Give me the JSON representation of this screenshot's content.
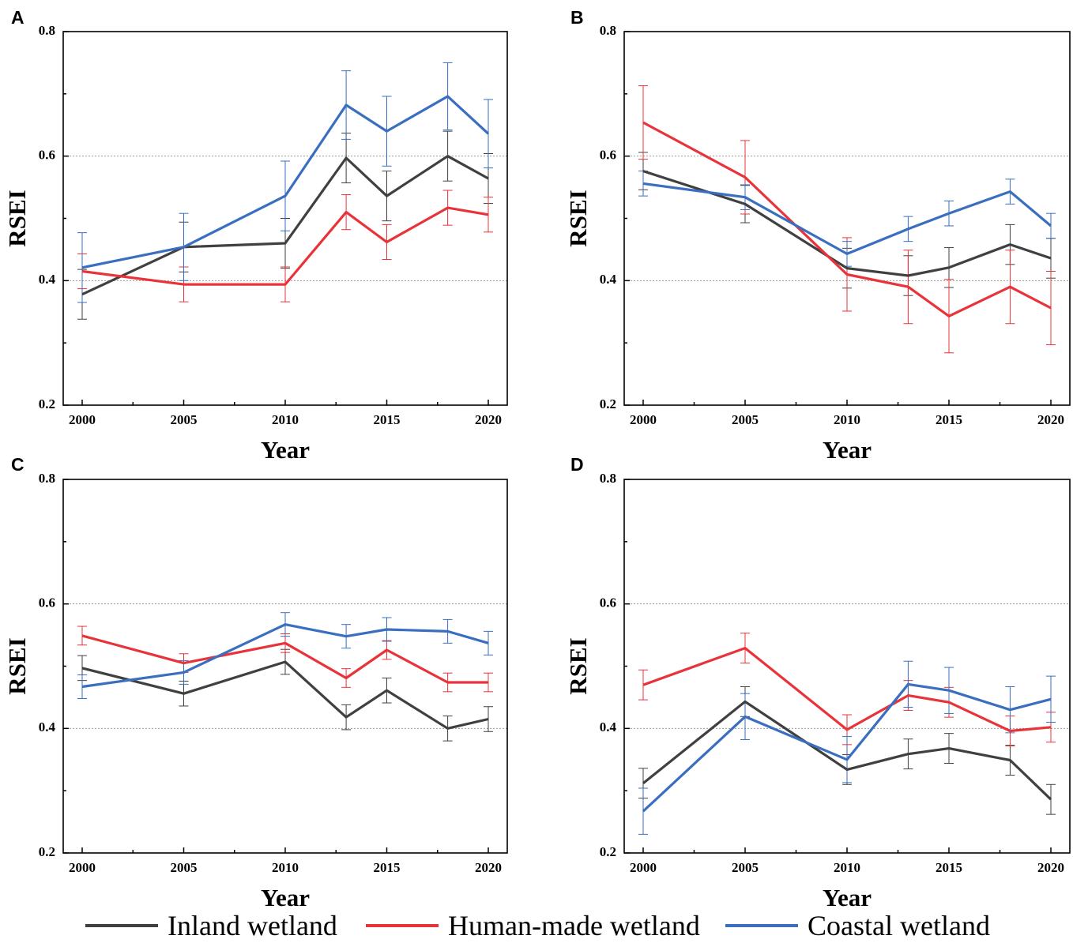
{
  "colors": {
    "inland": "#404040",
    "human": "#e8333a",
    "coastal": "#3a6ebf"
  },
  "legend": [
    {
      "key": "inland",
      "label": "Inland wetland"
    },
    {
      "key": "human",
      "label": "Human-made wetland"
    },
    {
      "key": "coastal",
      "label": "Coastal wetland"
    }
  ],
  "chart_data": [
    {
      "panel": "A",
      "type": "line",
      "xlabel": "Year",
      "ylabel": "RSEI",
      "ylim": [
        0.2,
        0.8
      ],
      "yticks": [
        "0.2",
        "0.4",
        "0.6",
        "0.8"
      ],
      "xlim": [
        2000,
        2020
      ],
      "xticks": [
        "2000",
        "2005",
        "2010",
        "2015",
        "2020"
      ],
      "grid": true,
      "x": [
        2000,
        2005,
        2010,
        2013,
        2015,
        2018,
        2020
      ],
      "series": [
        {
          "key": "inland",
          "name": "Inland wetland",
          "values": [
            0.378,
            0.454,
            0.46,
            0.597,
            0.536,
            0.6,
            0.564
          ],
          "err": [
            0.04,
            0.04,
            0.04,
            0.04,
            0.04,
            0.04,
            0.04
          ]
        },
        {
          "key": "human",
          "name": "Human-made wetland",
          "values": [
            0.415,
            0.394,
            0.394,
            0.51,
            0.462,
            0.517,
            0.506
          ],
          "err": [
            0.028,
            0.028,
            0.028,
            0.028,
            0.028,
            0.028,
            0.028
          ]
        },
        {
          "key": "coastal",
          "name": "Coastal wetland",
          "values": [
            0.421,
            0.454,
            0.536,
            0.682,
            0.64,
            0.696,
            0.636
          ],
          "err": [
            0.056,
            0.054,
            0.056,
            0.055,
            0.056,
            0.054,
            0.055
          ]
        }
      ]
    },
    {
      "panel": "B",
      "type": "line",
      "xlabel": "Year",
      "ylabel": "RSEI",
      "ylim": [
        0.2,
        0.8
      ],
      "yticks": [
        "0.2",
        "0.4",
        "0.6",
        "0.8"
      ],
      "xlim": [
        2000,
        2020
      ],
      "xticks": [
        "2000",
        "2005",
        "2010",
        "2015",
        "2020"
      ],
      "grid": true,
      "x": [
        2000,
        2005,
        2010,
        2013,
        2015,
        2018,
        2020
      ],
      "series": [
        {
          "key": "inland",
          "name": "Inland wetland",
          "values": [
            0.576,
            0.523,
            0.42,
            0.408,
            0.421,
            0.458,
            0.436
          ],
          "err": [
            0.03,
            0.03,
            0.032,
            0.032,
            0.032,
            0.032,
            0.032
          ]
        },
        {
          "key": "human",
          "name": "Human-made wetland",
          "values": [
            0.654,
            0.566,
            0.41,
            0.39,
            0.343,
            0.39,
            0.356
          ],
          "err": [
            0.059,
            0.059,
            0.059,
            0.059,
            0.059,
            0.059,
            0.059
          ]
        },
        {
          "key": "coastal",
          "name": "Coastal wetland",
          "values": [
            0.556,
            0.534,
            0.443,
            0.483,
            0.508,
            0.543,
            0.488
          ],
          "err": [
            0.02,
            0.02,
            0.02,
            0.02,
            0.02,
            0.02,
            0.02
          ]
        }
      ]
    },
    {
      "panel": "C",
      "type": "line",
      "xlabel": "Year",
      "ylabel": "RSEI",
      "ylim": [
        0.2,
        0.8
      ],
      "yticks": [
        "0.2",
        "0.4",
        "0.6",
        "0.8"
      ],
      "xlim": [
        2000,
        2020
      ],
      "xticks": [
        "2000",
        "2005",
        "2010",
        "2015",
        "2020"
      ],
      "grid": true,
      "x": [
        2000,
        2005,
        2010,
        2013,
        2015,
        2018,
        2020
      ],
      "series": [
        {
          "key": "inland",
          "name": "Inland wetland",
          "values": [
            0.497,
            0.456,
            0.507,
            0.418,
            0.461,
            0.4,
            0.415
          ],
          "err": [
            0.02,
            0.02,
            0.02,
            0.02,
            0.02,
            0.02,
            0.02
          ]
        },
        {
          "key": "human",
          "name": "Human-made wetland",
          "values": [
            0.549,
            0.505,
            0.537,
            0.481,
            0.526,
            0.474,
            0.474
          ],
          "err": [
            0.015,
            0.015,
            0.015,
            0.015,
            0.015,
            0.015,
            0.015
          ]
        },
        {
          "key": "coastal",
          "name": "Coastal wetland",
          "values": [
            0.467,
            0.49,
            0.567,
            0.548,
            0.559,
            0.556,
            0.537
          ],
          "err": [
            0.019,
            0.019,
            0.019,
            0.019,
            0.019,
            0.019,
            0.019
          ]
        }
      ]
    },
    {
      "panel": "D",
      "type": "line",
      "xlabel": "Year",
      "ylabel": "RSEI",
      "ylim": [
        0.2,
        0.8
      ],
      "yticks": [
        "0.2",
        "0.4",
        "0.6",
        "0.8"
      ],
      "xlim": [
        2000,
        2020
      ],
      "xticks": [
        "2000",
        "2005",
        "2010",
        "2015",
        "2020"
      ],
      "grid": true,
      "x": [
        2000,
        2005,
        2010,
        2013,
        2015,
        2018,
        2020
      ],
      "series": [
        {
          "key": "inland",
          "name": "Inland wetland",
          "values": [
            0.312,
            0.443,
            0.334,
            0.359,
            0.368,
            0.349,
            0.286
          ],
          "err": [
            0.024,
            0.024,
            0.024,
            0.024,
            0.024,
            0.024,
            0.024
          ]
        },
        {
          "key": "human",
          "name": "Human-made wetland",
          "values": [
            0.47,
            0.529,
            0.398,
            0.453,
            0.442,
            0.396,
            0.402
          ],
          "err": [
            0.024,
            0.024,
            0.024,
            0.024,
            0.024,
            0.024,
            0.024
          ]
        },
        {
          "key": "coastal",
          "name": "Coastal wetland",
          "values": [
            0.267,
            0.419,
            0.35,
            0.471,
            0.461,
            0.43,
            0.447
          ],
          "err": [
            0.037,
            0.037,
            0.037,
            0.037,
            0.037,
            0.037,
            0.037
          ]
        }
      ]
    }
  ]
}
